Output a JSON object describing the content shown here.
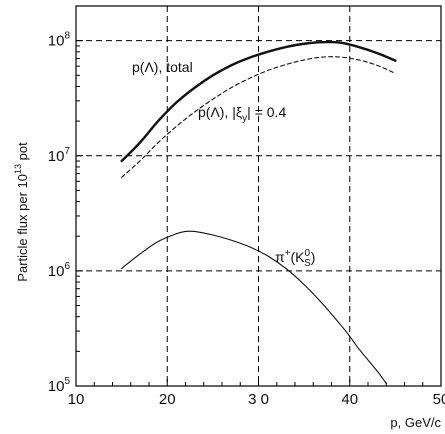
{
  "chart_data": {
    "type": "line",
    "xlabel": "p, GeV/c",
    "ylabel": "Particle flux per 10",
    "ylabel_sup": "13",
    "ylabel_tail": " pot",
    "xlim": [
      10,
      50
    ],
    "ylim": [
      100000,
      200000000
    ],
    "yscale": "log",
    "grid": "dashed",
    "x_ticks": [
      "10",
      "20",
      "3 0",
      "40",
      "50"
    ],
    "x_tick_values": [
      10,
      20,
      30,
      40,
      50
    ],
    "y_ticks": [
      {
        "base": "10",
        "exp": "5",
        "value": 100000
      },
      {
        "base": "10",
        "exp": "6",
        "value": 1000000
      },
      {
        "base": "10",
        "exp": "7",
        "value": 10000000
      },
      {
        "base": "10",
        "exp": "8",
        "value": 100000000
      }
    ],
    "series": [
      {
        "name": "p(Λ), total",
        "style": "solid-thick",
        "x": [
          15,
          17,
          19,
          21,
          23,
          25,
          27,
          29,
          31,
          33,
          35,
          37,
          39,
          41,
          43,
          45
        ],
        "y": [
          9000000,
          13000000,
          20000000,
          29000000,
          39000000,
          50000000,
          61000000,
          71000000,
          80000000,
          88000000,
          94000000,
          97000000,
          96000000,
          88000000,
          78000000,
          67000000
        ]
      },
      {
        "name": "p(Λ), |ξ_y| = 0.4",
        "style": "dashed",
        "x": [
          15,
          17,
          19,
          21,
          23,
          25,
          27,
          29,
          31,
          33,
          35,
          37,
          39,
          41,
          43,
          45
        ],
        "y": [
          6500000,
          9000000,
          13000000,
          18000000,
          24000000,
          31000000,
          39000000,
          47000000,
          55000000,
          62000000,
          68000000,
          72000000,
          72000000,
          68000000,
          61000000,
          52000000
        ]
      },
      {
        "name": "π⁺(K⁰s)",
        "style": "solid-thin",
        "x": [
          15,
          17,
          19,
          21,
          22,
          23,
          25,
          27,
          29,
          31,
          33,
          35,
          37,
          39,
          40,
          41,
          43,
          44
        ],
        "y": [
          1050000,
          1400000,
          1800000,
          2100000,
          2200000,
          2200000,
          2050000,
          1850000,
          1620000,
          1350000,
          1050000,
          760000,
          520000,
          340000,
          270000,
          210000,
          135000,
          105000
        ]
      }
    ]
  },
  "annotations": {
    "total": "p(Λ), total",
    "dashed_pre": "p(Λ), ",
    "dashed_xi": "ξ",
    "dashed_sub": "y",
    "dashed_post": " = 0.4",
    "pion_main": "π",
    "pion_sup": "+",
    "pion_mid": "(K",
    "pion_sup2": "0",
    "pion_sub2": "S",
    "pion_end": ")"
  },
  "colors": {
    "line": "#111111",
    "grid": "#000000"
  }
}
